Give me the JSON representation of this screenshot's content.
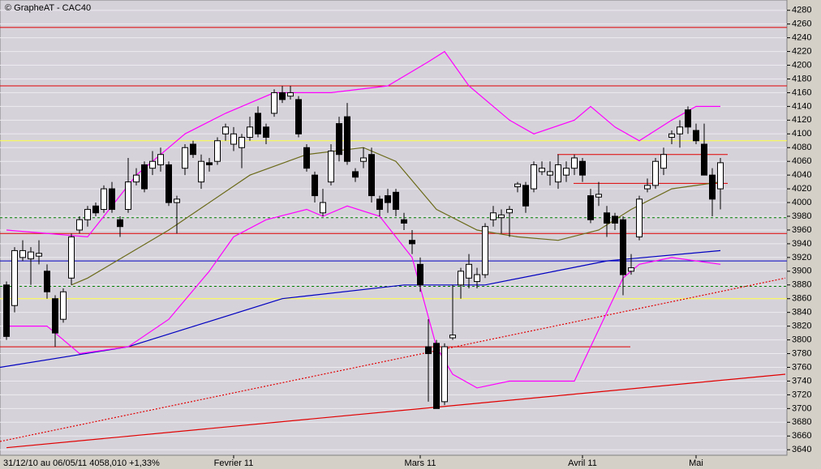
{
  "chart_data": {
    "type": "candlestick",
    "title": "© GrapheAT - CAC40",
    "subtitle": "31/12/10 au 06/05/11  4058,010 +1,33%",
    "ylim": [
      3632,
      4295
    ],
    "yticks": [
      3640,
      3660,
      3680,
      3700,
      3720,
      3740,
      3760,
      3780,
      3800,
      3820,
      3840,
      3860,
      3880,
      3900,
      3920,
      3940,
      3960,
      3980,
      4000,
      4020,
      4040,
      4060,
      4080,
      4100,
      4120,
      4140,
      4160,
      4180,
      4200,
      4220,
      4240,
      4260,
      4280
    ],
    "xlim": [
      -0.8,
      96.2
    ],
    "xticks": [
      {
        "value": 28,
        "label": "Fevrier 11"
      },
      {
        "value": 51,
        "label": "Mars 11"
      },
      {
        "value": 71,
        "label": "Avril 11"
      },
      {
        "value": 85,
        "label": "Mai"
      }
    ],
    "grid": true,
    "up_color": "#ffffff",
    "down_color": "#000000",
    "ohlc": [
      [
        3880,
        3885,
        3800,
        3805
      ],
      [
        3850,
        3935,
        3840,
        3930
      ],
      [
        3920,
        3945,
        3915,
        3930
      ],
      [
        3918,
        3935,
        3880,
        3928
      ],
      [
        3922,
        3945,
        3910,
        3926
      ],
      [
        3900,
        3910,
        3860,
        3870
      ],
      [
        3860,
        3865,
        3790,
        3810
      ],
      [
        3830,
        3875,
        3825,
        3870
      ],
      [
        3890,
        3955,
        3880,
        3950
      ],
      [
        3960,
        3980,
        3955,
        3975
      ],
      [
        3975,
        3995,
        3965,
        3990
      ],
      [
        3995,
        4000,
        3980,
        3985
      ],
      [
        3990,
        4025,
        3985,
        4020
      ],
      [
        4020,
        4030,
        3985,
        3990
      ],
      [
        3975,
        3980,
        3950,
        3965
      ],
      [
        3990,
        4065,
        3985,
        4030
      ],
      [
        4030,
        4050,
        4025,
        4040
      ],
      [
        4055,
        4060,
        4015,
        4020
      ],
      [
        4050,
        4075,
        4040,
        4060
      ],
      [
        4055,
        4080,
        4045,
        4070
      ],
      [
        4055,
        4060,
        3995,
        4000
      ],
      [
        4000,
        4010,
        3955,
        4005
      ],
      [
        4050,
        4085,
        4040,
        4080
      ],
      [
        4085,
        4090,
        4065,
        4070
      ],
      [
        4030,
        4070,
        4020,
        4060
      ],
      [
        4058,
        4065,
        4045,
        4055
      ],
      [
        4060,
        4095,
        4055,
        4090
      ],
      [
        4100,
        4115,
        4090,
        4110
      ],
      [
        4085,
        4110,
        4075,
        4100
      ],
      [
        4080,
        4100,
        4050,
        4095
      ],
      [
        4095,
        4125,
        4090,
        4110
      ],
      [
        4130,
        4140,
        4095,
        4100
      ],
      [
        4110,
        4115,
        4085,
        4095
      ],
      [
        4130,
        4165,
        4125,
        4160
      ],
      [
        4160,
        4170,
        4145,
        4150
      ],
      [
        4155,
        4170,
        4150,
        4160
      ],
      [
        4150,
        4155,
        4095,
        4100
      ],
      [
        4080,
        4085,
        4045,
        4050
      ],
      [
        4040,
        4045,
        4000,
        4010
      ],
      [
        3985,
        4020,
        3980,
        4000
      ],
      [
        4030,
        4085,
        4025,
        4075
      ],
      [
        4115,
        4125,
        4060,
        4070
      ],
      [
        4125,
        4145,
        4055,
        4060
      ],
      [
        4045,
        4050,
        4030,
        4037
      ],
      [
        4060,
        4080,
        4050,
        4065
      ],
      [
        4070,
        4080,
        4000,
        4010
      ],
      [
        4005,
        4010,
        3980,
        3990
      ],
      [
        4010,
        4020,
        3985,
        4000
      ],
      [
        4015,
        4020,
        3980,
        3990
      ],
      [
        3975,
        3985,
        3960,
        3970
      ],
      [
        3945,
        3960,
        3925,
        3940
      ],
      [
        3910,
        3920,
        3870,
        3880
      ],
      [
        3790,
        3830,
        3710,
        3780
      ],
      [
        3795,
        3800,
        3700,
        3700
      ],
      [
        3710,
        3795,
        3705,
        3790
      ],
      [
        3803,
        3880,
        3800,
        3807
      ],
      [
        3880,
        3905,
        3860,
        3900
      ],
      [
        3890,
        3925,
        3875,
        3910
      ],
      [
        3885,
        3905,
        3875,
        3895
      ],
      [
        3895,
        3970,
        3890,
        3965
      ],
      [
        3975,
        3995,
        3965,
        3985
      ],
      [
        3978,
        3990,
        3955,
        3982
      ],
      [
        3985,
        3995,
        3950,
        3990
      ],
      [
        4023,
        4030,
        4015,
        4027
      ],
      [
        4025,
        4030,
        3985,
        3995
      ],
      [
        4020,
        4060,
        4015,
        4055
      ],
      [
        4045,
        4060,
        4040,
        4050
      ],
      [
        4040,
        4060,
        4025,
        4045
      ],
      [
        4030,
        4070,
        4020,
        4055
      ],
      [
        4040,
        4060,
        4030,
        4050
      ],
      [
        4050,
        4070,
        4040,
        4065
      ],
      [
        4060,
        4065,
        4030,
        4040
      ],
      [
        4010,
        4020,
        3970,
        3975
      ],
      [
        4008,
        4030,
        3995,
        4012
      ],
      [
        3985,
        3995,
        3950,
        3970
      ],
      [
        3980,
        3985,
        3960,
        3970
      ],
      [
        3975,
        3980,
        3865,
        3895
      ],
      [
        3900,
        3925,
        3895,
        3905
      ],
      [
        3950,
        4010,
        3945,
        4005
      ],
      [
        4020,
        4035,
        4015,
        4025
      ],
      [
        4025,
        4065,
        4020,
        4060
      ],
      [
        4050,
        4080,
        4040,
        4070
      ],
      [
        4095,
        4105,
        4085,
        4100
      ],
      [
        4100,
        4120,
        4080,
        4110
      ],
      [
        4135,
        4140,
        4100,
        4110
      ],
      [
        4105,
        4115,
        4085,
        4090
      ],
      [
        4085,
        4115,
        4040,
        4040
      ],
      [
        4040,
        4050,
        3980,
        4005
      ],
      [
        4020,
        4065,
        3990,
        4058
      ]
    ],
    "hlines": [
      {
        "value": 4255,
        "color": "#e00000",
        "dash": false
      },
      {
        "value": 4170,
        "color": "#e00000",
        "dash": false
      },
      {
        "value": 4090,
        "color": "#ffff40",
        "dash": false
      },
      {
        "value": 3978,
        "color": "#008000",
        "dash": true
      },
      {
        "value": 3955,
        "color": "#e00000",
        "dash": false
      },
      {
        "value": 3915,
        "color": "#0000c0",
        "dash": false
      },
      {
        "value": 3878,
        "color": "#008000",
        "dash": true
      },
      {
        "value": 3860,
        "color": "#ffff40",
        "dash": false
      },
      {
        "value": 3790,
        "color": "#e00000",
        "dash": false,
        "to": 76.9
      },
      {
        "value": 4070,
        "color": "#e00000",
        "dash": false,
        "from": 67.9,
        "to": 88.9
      },
      {
        "value": 4028,
        "color": "#e00000",
        "dash": false,
        "from": 69.9,
        "to": 88.9
      }
    ],
    "lines": [
      {
        "color": "#e00000",
        "dash": false,
        "x": [
          0,
          96
        ],
        "values": [
          3643,
          3750
        ]
      },
      {
        "color": "#e00000",
        "dash": true,
        "x": [
          -0.8,
          96
        ],
        "values": [
          3652,
          3890
        ]
      },
      {
        "color": "#0000c0",
        "dash": false,
        "x": [
          -0.8,
          15,
          34,
          49,
          59,
          74,
          88
        ],
        "values": [
          3760,
          3790,
          3860,
          3880,
          3880,
          3915,
          3930
        ]
      },
      {
        "color": "#6b6b1a",
        "dash": false,
        "x": [
          8,
          10,
          20,
          30,
          37,
          44,
          48,
          53,
          58,
          63,
          68,
          73,
          77,
          82,
          88
        ],
        "values": [
          3880,
          3890,
          3960,
          4040,
          4070,
          4080,
          4060,
          3990,
          3960,
          3950,
          3945,
          3960,
          3990,
          4020,
          4030
        ]
      },
      {
        "color": "#ff00ff",
        "dash": false,
        "x": [
          0,
          10,
          16,
          22,
          27,
          33,
          40,
          47,
          52,
          54,
          57,
          62,
          65,
          70,
          72,
          75,
          78,
          82,
          85,
          88
        ],
        "values": [
          3960,
          3950,
          4040,
          4100,
          4130,
          4160,
          4160,
          4170,
          4205,
          4220,
          4170,
          4120,
          4100,
          4120,
          4140,
          4110,
          4090,
          4120,
          4140,
          4140
        ]
      },
      {
        "color": "#ff00ff",
        "dash": false,
        "x": [
          0,
          5,
          9,
          15,
          20,
          25,
          28,
          32,
          37,
          39,
          42,
          46,
          50,
          53,
          55,
          58,
          62,
          66,
          70,
          74,
          76,
          78,
          82,
          88
        ],
        "values": [
          3820,
          3820,
          3780,
          3790,
          3830,
          3900,
          3950,
          3975,
          3990,
          3980,
          3995,
          3980,
          3920,
          3790,
          3750,
          3730,
          3740,
          3740,
          3740,
          3840,
          3890,
          3910,
          3920,
          3910
        ]
      }
    ]
  }
}
